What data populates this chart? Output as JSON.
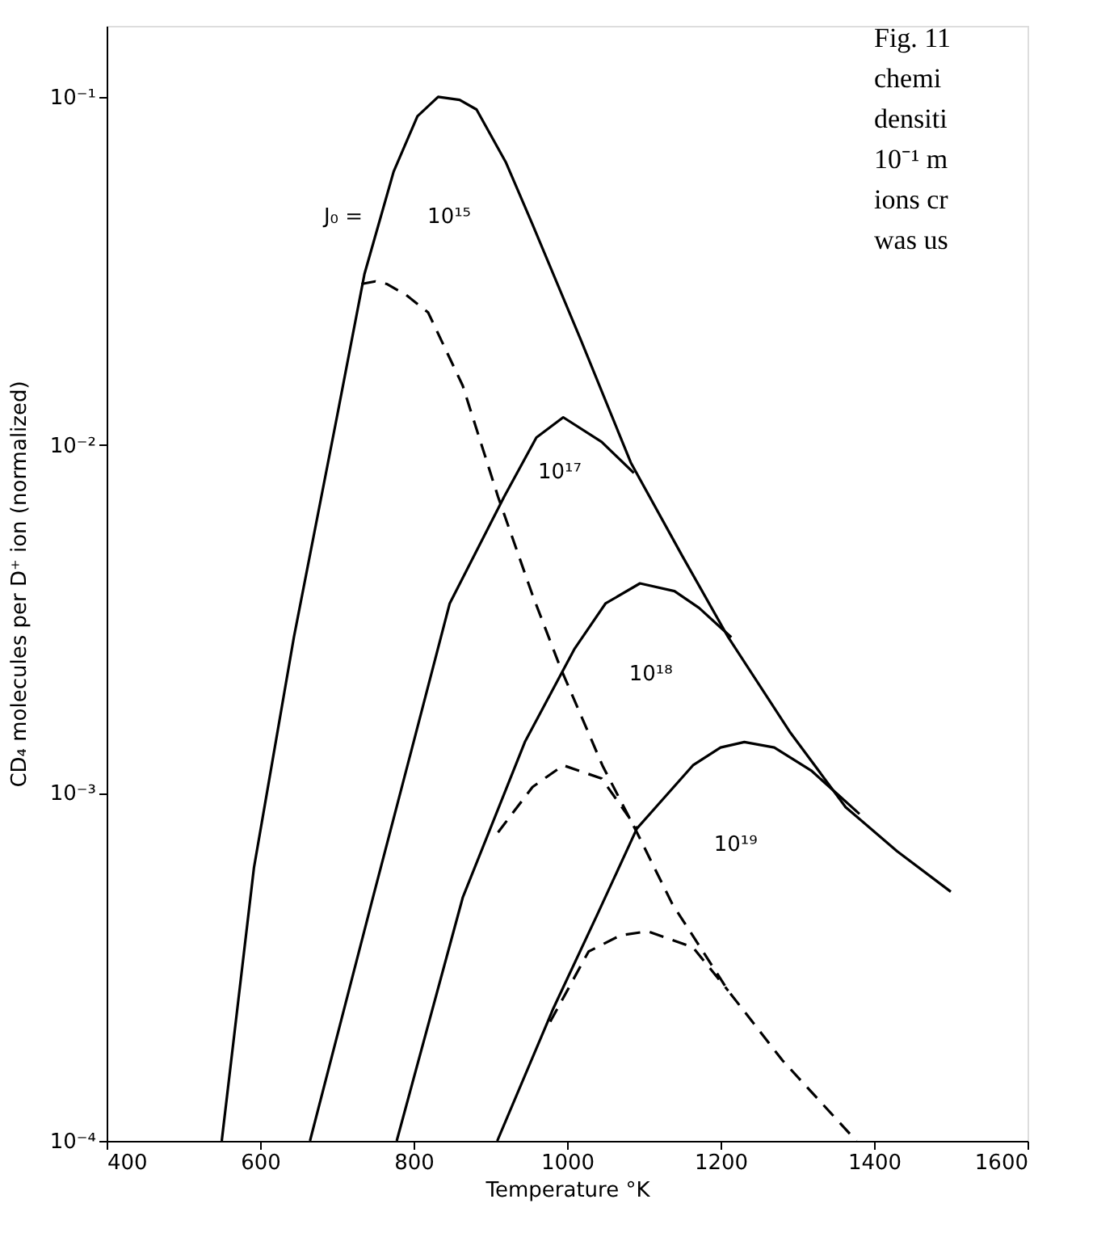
{
  "chart_data": {
    "type": "line",
    "xlabel": "Temperature °K",
    "ylabel": "CD₄ molecules per D⁺ ion (normalized)",
    "log": "y",
    "grid": false,
    "xlim": [
      400,
      1600
    ],
    "xticks": [
      400,
      600,
      800,
      1000,
      1200,
      1400,
      1600
    ],
    "ylim": [
      0.0001,
      0.16
    ],
    "yticks": [
      {
        "value": 0.0001,
        "label": "10⁻⁴"
      },
      {
        "value": 0.001,
        "label": "10⁻³"
      },
      {
        "value": 0.01,
        "label": "10⁻²"
      },
      {
        "value": 0.1,
        "label": "10⁻¹"
      }
    ],
    "series": [
      {
        "color": "#000000",
        "line_style": "solid",
        "x": [
          550,
          592,
          644,
          700,
          736,
          774,
          805,
          832,
          860,
          882,
          920,
          955,
          1018,
          1083,
          1150,
          1210,
          1290,
          1363,
          1430,
          1500
        ],
        "values": [
          0.0001,
          0.00061,
          0.0028,
          0.012,
          0.031,
          0.061,
          0.088,
          0.1,
          0.098,
          0.092,
          0.065,
          0.043,
          0.02,
          0.0089,
          0.0048,
          0.0028,
          0.0015,
          0.00091,
          0.00068,
          0.00052
        ]
      },
      {
        "color": "#000000",
        "line_style": "solid",
        "x": [
          665,
          747,
          800,
          847,
          918,
          960,
          995,
          1045,
          1087
        ],
        "values": [
          0.0001,
          0.0005,
          0.0014,
          0.0035,
          0.0071,
          0.0105,
          0.012,
          0.0102,
          0.0083
        ]
      },
      {
        "color": "#000000",
        "line_style": "solid",
        "x": [
          778,
          864,
          945,
          1010,
          1050,
          1095,
          1140,
          1172,
          1214
        ],
        "values": [
          0.0001,
          0.0005,
          0.0014,
          0.0026,
          0.0035,
          0.004,
          0.0038,
          0.0034,
          0.0028
        ]
      },
      {
        "color": "#000000",
        "line_style": "solid",
        "x": [
          909,
          982,
          1040,
          1091,
          1164,
          1200,
          1231,
          1270,
          1318,
          1381
        ],
        "values": [
          0.0001,
          0.00024,
          0.00045,
          0.00079,
          0.0012,
          0.00135,
          0.0014,
          0.00135,
          0.00116,
          0.00087
        ]
      },
      {
        "color": "#000000",
        "line_style": "dashed",
        "x": [
          732,
          750,
          765,
          790,
          819,
          864,
          910,
          955,
          991,
          1046,
          1091,
          1137,
          1210,
          1281,
          1377
        ],
        "values": [
          0.029,
          0.0295,
          0.029,
          0.027,
          0.024,
          0.0148,
          0.0071,
          0.0037,
          0.0023,
          0.0012,
          0.00077,
          0.00048,
          0.00027,
          0.00017,
          0.0001
        ]
      },
      {
        "color": "#000000",
        "line_style": "dashed",
        "x": [
          910,
          955,
          995,
          1045,
          1091
        ],
        "values": [
          0.00077,
          0.00104,
          0.0012,
          0.0011,
          0.00079
        ]
      },
      {
        "color": "#000000",
        "line_style": "dashed",
        "x": [
          978,
          1028,
          1070,
          1105,
          1164,
          1210
        ],
        "values": [
          0.00022,
          0.00035,
          0.00039,
          0.0004,
          0.00036,
          0.00027
        ]
      }
    ],
    "annotations": [
      "J₀ =",
      "10¹⁵",
      "10¹⁷",
      "10¹⁸",
      "10¹⁹",
      "Fig. 11",
      "chemi",
      "densiti",
      "10⁻¹ m",
      "ions cr",
      "was us"
    ]
  }
}
